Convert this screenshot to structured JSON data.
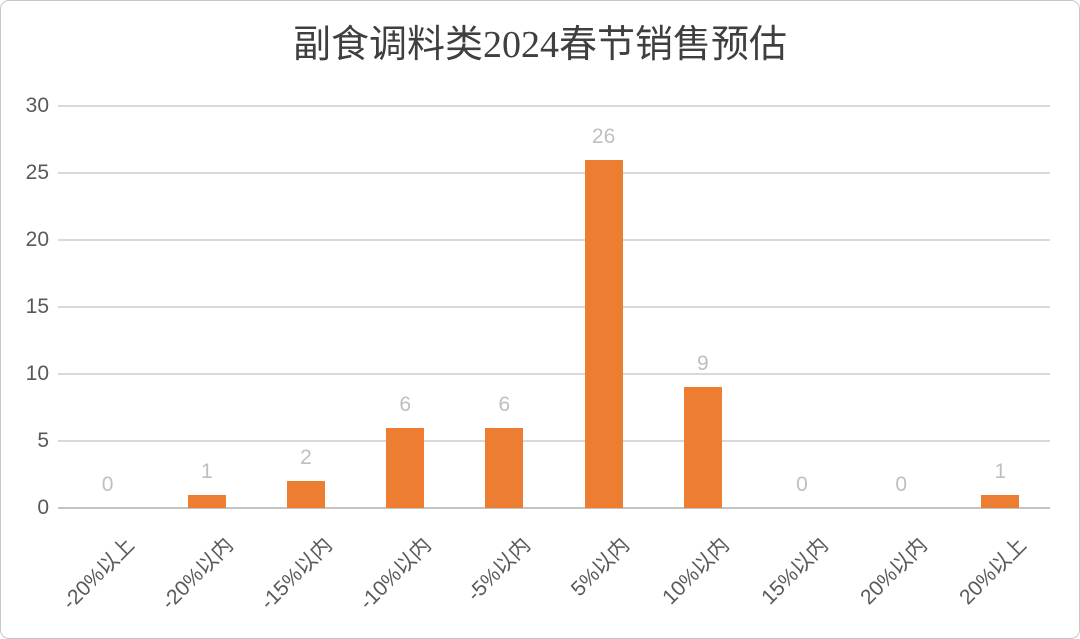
{
  "chart_data": {
    "type": "bar",
    "title": "副食调料类2024春节销售预估",
    "categories": [
      "-20%以上",
      "-20%以内",
      "-15%以内",
      "-10%以内",
      "-5%以内",
      "5%以内",
      "10%以内",
      "15%以内",
      "20%以内",
      "20%以上"
    ],
    "values": [
      0,
      1,
      2,
      6,
      6,
      26,
      9,
      0,
      0,
      1
    ],
    "y_ticks": [
      0,
      5,
      10,
      15,
      20,
      25,
      30
    ],
    "ylim": [
      0,
      30
    ],
    "xlabel": "",
    "ylabel": "",
    "legend": "none",
    "grid": "horizontal",
    "data_labels": "outside-end",
    "colors": {
      "bar": "#ED7D31",
      "data_label": "#BFBFBF",
      "axis_text": "#595959",
      "gridline": "#D9D9D9",
      "axis_line": "#C3C3C3",
      "title_text": "#3F3F3F",
      "frame_border": "#C9C7C7",
      "background": "#FFFFFF"
    }
  }
}
